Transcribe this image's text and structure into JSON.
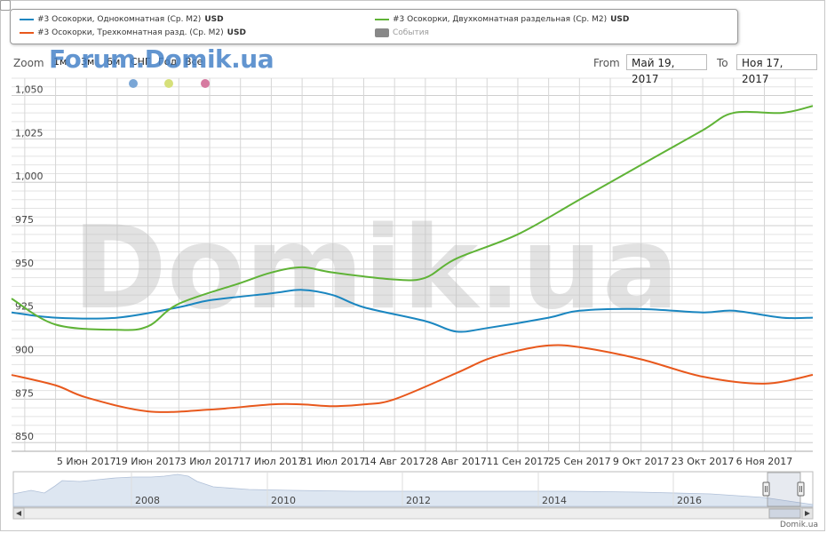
{
  "legend": {
    "items": [
      {
        "label": "#3 Осокорки, Однокомнатная (Ср. M2)",
        "unit": "USD",
        "color": "#1a86c0"
      },
      {
        "label": "#3 Осокорки, Двухкомнатная раздельная (Ср. M2)",
        "unit": "USD",
        "color": "#5fb336"
      },
      {
        "label": "#3 Осокорки, Трехкомнатная разд. (Ср. M2)",
        "unit": "USD",
        "color": "#e8581c"
      },
      {
        "label": "События",
        "unit": "",
        "color": "#888888"
      }
    ]
  },
  "watermark_top": "Forum.Domik.ua",
  "watermark_big": "Domik.ua",
  "zoom": {
    "label": "Zoom",
    "buttons": [
      "1м",
      "3м",
      "6м",
      "СНГ",
      "Год",
      "Все"
    ]
  },
  "range": {
    "from_label": "From",
    "from_value": "Май 19, 2017",
    "to_label": "To",
    "to_value": "Ноя 17, 2017"
  },
  "event_dots": [
    "#7aa6d6",
    "#d6e07a",
    "#d67aa0"
  ],
  "navigator": {
    "year_labels": [
      "2008",
      "2010",
      "2012",
      "2014",
      "2016"
    ]
  },
  "copyright": "Domik.ua",
  "chart_data": {
    "type": "line",
    "x_tick_labels": [
      "5 Июн 2017",
      "19 Июн 2017",
      "3 Июл 2017",
      "17 Июл 2017",
      "31 Июл 2017",
      "14 Авг 2017",
      "28 Авг 2017",
      "11 Сен 2017",
      "25 Сен 2017",
      "9 Окт 2017",
      "23 Окт 2017",
      "6 Ноя 2017"
    ],
    "y_tick_labels": [
      "850",
      "875",
      "900",
      "925",
      "950",
      "975",
      "1,000",
      "1,025",
      "1,050"
    ],
    "y_ticks": [
      850,
      875,
      900,
      925,
      950,
      975,
      1000,
      1025,
      1050
    ],
    "ylim": [
      845,
      1060
    ],
    "x_range": [
      "2017-05-19",
      "2017-11-17"
    ],
    "grid": true,
    "series": [
      {
        "name": "#3 Осокорки, Однокомнатная (Ср. M2)",
        "color": "#1a86c0",
        "x": [
          "2017-05-19",
          "2017-05-29",
          "2017-06-12",
          "2017-06-26",
          "2017-07-03",
          "2017-07-17",
          "2017-07-24",
          "2017-07-31",
          "2017-08-07",
          "2017-08-21",
          "2017-08-28",
          "2017-09-04",
          "2017-09-18",
          "2017-09-25",
          "2017-10-09",
          "2017-10-23",
          "2017-10-30",
          "2017-11-10",
          "2017-11-17"
        ],
        "values": [
          925,
          922,
          922,
          928,
          932,
          936,
          938,
          935,
          928,
          920,
          914,
          916,
          922,
          926,
          927,
          925,
          926,
          922,
          922
        ]
      },
      {
        "name": "#3 Осокорки, Двухкомнатная раздельная (Ср. M2)",
        "color": "#5fb336",
        "x": [
          "2017-05-19",
          "2017-05-29",
          "2017-06-12",
          "2017-06-19",
          "2017-06-26",
          "2017-07-10",
          "2017-07-17",
          "2017-07-24",
          "2017-07-31",
          "2017-08-14",
          "2017-08-21",
          "2017-08-28",
          "2017-09-11",
          "2017-09-25",
          "2017-10-09",
          "2017-10-23",
          "2017-10-30",
          "2017-11-10",
          "2017-11-17"
        ],
        "values": [
          933,
          918,
          915,
          917,
          930,
          942,
          948,
          951,
          948,
          944,
          945,
          956,
          970,
          990,
          1010,
          1030,
          1040,
          1040,
          1044
        ]
      },
      {
        "name": "#3 Осокорки, Трехкомнатная разд. (Ср. M2)",
        "color": "#e8581c",
        "x": [
          "2017-05-19",
          "2017-05-29",
          "2017-06-05",
          "2017-06-19",
          "2017-07-03",
          "2017-07-17",
          "2017-07-24",
          "2017-07-31",
          "2017-08-07",
          "2017-08-14",
          "2017-08-28",
          "2017-09-04",
          "2017-09-11",
          "2017-09-18",
          "2017-09-25",
          "2017-10-09",
          "2017-10-23",
          "2017-11-06",
          "2017-11-17"
        ],
        "values": [
          889,
          883,
          876,
          868,
          869,
          872,
          872,
          871,
          872,
          875,
          890,
          898,
          903,
          906,
          905,
          898,
          888,
          884,
          889
        ]
      }
    ]
  }
}
